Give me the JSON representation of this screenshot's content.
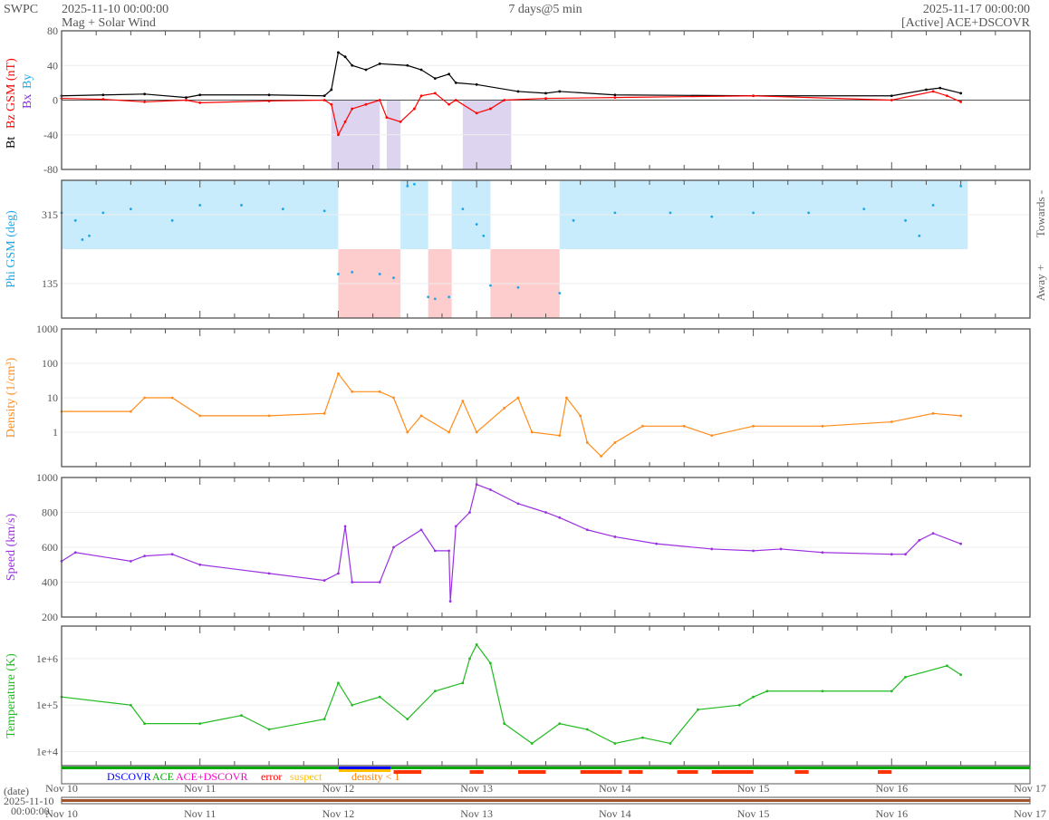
{
  "header": {
    "org": "SWPC",
    "start": "2025-11-10 00:00:00",
    "subtitle": "Mag + Solar Wind",
    "span": "7 days@5 min",
    "end": "2025-11-17 00:00:00",
    "source": "[Active] ACE+DSCOVR"
  },
  "colors": {
    "bt": "#000000",
    "bz": "#ff0000",
    "bx": "#8a2be2",
    "by": "#1ea7e8",
    "density": "#ff8c1a",
    "speed": "#9b30e0",
    "temperature": "#22bb22",
    "towards": "#c8ecfb",
    "away": "#fdcccc",
    "ace": "#00aa00",
    "dscovr": "#0000ff",
    "both": "#ff00cc",
    "error": "#ff0000",
    "suspect": "#ffbf00",
    "lowdensity": "#ff7f00",
    "datebar": "#a0522d"
  },
  "x_ticks": [
    "Nov 10",
    "Nov 11",
    "Nov 12",
    "Nov 13",
    "Nov 14",
    "Nov 15",
    "Nov 16",
    "Nov 17"
  ],
  "date_label": "(date)",
  "date_value": "2025-11-10",
  "time_value": "00:00:00",
  "legend": {
    "dscovr": "DSCOVR",
    "ace": "ACE",
    "both": "ACE+DSCOVR",
    "error": "error",
    "suspect": "suspect",
    "density": "density < 1"
  },
  "chart_data": [
    {
      "type": "line",
      "id": "mag",
      "ylabel_parts": {
        "bt": "Bt",
        "bz": "Bz GSM (nT)",
        "bx": "Bx",
        "by": "By"
      },
      "ylim": [
        -80,
        80
      ],
      "yticks": [
        "80",
        "40",
        "0",
        "-40",
        "-80"
      ],
      "ytick_values": [
        80,
        40,
        0,
        -40,
        -80
      ],
      "x_unit": "days since 2025-11-10 00:00",
      "series": [
        {
          "name": "Bt",
          "color": "#000000",
          "x": [
            0,
            0.3,
            0.6,
            0.9,
            1.0,
            1.5,
            1.9,
            1.95,
            2.0,
            2.05,
            2.1,
            2.2,
            2.3,
            2.5,
            2.6,
            2.7,
            2.8,
            2.85,
            3.0,
            3.3,
            3.5,
            3.6,
            4,
            5,
            6,
            6.25,
            6.35,
            6.5
          ],
          "y": [
            5,
            6,
            7,
            3,
            6,
            6,
            5,
            12,
            55,
            50,
            40,
            35,
            42,
            40,
            35,
            25,
            30,
            20,
            18,
            10,
            8,
            10,
            6,
            5,
            5,
            12,
            14,
            8
          ]
        },
        {
          "name": "Bz GSM",
          "color": "#ff0000",
          "x": [
            0,
            0.3,
            0.6,
            0.9,
            1.0,
            1.5,
            1.9,
            1.95,
            2.0,
            2.05,
            2.1,
            2.2,
            2.3,
            2.35,
            2.45,
            2.55,
            2.6,
            2.7,
            2.8,
            2.85,
            3.0,
            3.1,
            3.2,
            3.5,
            4,
            5,
            6,
            6.3,
            6.4,
            6.5
          ],
          "y": [
            2,
            1,
            -2,
            0,
            -3,
            -1,
            0,
            -5,
            -40,
            -25,
            -10,
            -5,
            0,
            -20,
            -25,
            -10,
            5,
            8,
            -5,
            0,
            -15,
            -10,
            0,
            2,
            3,
            5,
            0,
            10,
            5,
            -2
          ]
        }
      ]
    },
    {
      "type": "scatter",
      "id": "phi",
      "ylabel": "Phi GSM (deg)",
      "right_labels": [
        "Towards -",
        "Away +"
      ],
      "ylim": [
        45,
        405
      ],
      "yticks": [
        "315",
        "135"
      ],
      "ytick_values": [
        315,
        135
      ],
      "series": [
        {
          "name": "Phi GSM",
          "color": "#1ea7e8",
          "x": [
            0,
            0.1,
            0.15,
            0.2,
            0.3,
            0.5,
            0.8,
            1.0,
            1.3,
            1.6,
            1.9,
            2.0,
            2.1,
            2.3,
            2.4,
            2.5,
            2.55,
            2.65,
            2.7,
            2.8,
            2.9,
            3.0,
            3.05,
            3.1,
            3.3,
            3.6,
            3.7,
            4.0,
            4.4,
            4.7,
            5.0,
            5.4,
            5.8,
            6.1,
            6.2,
            6.3,
            6.5
          ],
          "y": [
            320,
            300,
            250,
            260,
            320,
            330,
            300,
            340,
            340,
            330,
            325,
            160,
            165,
            160,
            150,
            390,
            395,
            100,
            95,
            100,
            330,
            290,
            260,
            130,
            125,
            110,
            300,
            320,
            320,
            310,
            320,
            320,
            330,
            300,
            260,
            340,
            390
          ]
        }
      ]
    },
    {
      "type": "line",
      "id": "density",
      "ylabel": "Density (1/cm³)",
      "scale": "log",
      "ylim": [
        0.1,
        1000
      ],
      "yticks": [
        "1000",
        "100",
        "10",
        "1"
      ],
      "ytick_values": [
        1000,
        100,
        10,
        1
      ],
      "series": [
        {
          "name": "Density",
          "color": "#ff8c1a",
          "x": [
            0,
            0.5,
            0.6,
            0.8,
            1.0,
            1.5,
            1.9,
            2.0,
            2.1,
            2.3,
            2.4,
            2.5,
            2.6,
            2.8,
            2.9,
            3.0,
            3.2,
            3.3,
            3.4,
            3.6,
            3.65,
            3.75,
            3.8,
            3.9,
            4.0,
            4.2,
            4.5,
            4.7,
            5.0,
            5.5,
            6.0,
            6.3,
            6.5
          ],
          "y": [
            4,
            4,
            10,
            10,
            3,
            3,
            3.5,
            50,
            15,
            15,
            10,
            1,
            3,
            1,
            8,
            1,
            5,
            10,
            1,
            0.8,
            10,
            3,
            0.5,
            0.2,
            0.5,
            1.5,
            1.5,
            0.8,
            1.5,
            1.5,
            2,
            3.5,
            3
          ]
        }
      ]
    },
    {
      "type": "line",
      "id": "speed",
      "ylabel": "Speed (km/s)",
      "ylim": [
        200,
        1000
      ],
      "yticks": [
        "1000",
        "800",
        "600",
        "400",
        "200"
      ],
      "ytick_values": [
        1000,
        800,
        600,
        400,
        200
      ],
      "series": [
        {
          "name": "Speed",
          "color": "#9b30e0",
          "x": [
            0,
            0.1,
            0.5,
            0.6,
            0.8,
            1.0,
            1.5,
            1.9,
            2.0,
            2.05,
            2.1,
            2.3,
            2.4,
            2.6,
            2.7,
            2.8,
            2.81,
            2.85,
            2.95,
            3.0,
            3.1,
            3.3,
            3.5,
            3.6,
            3.8,
            4.0,
            4.3,
            4.7,
            5.0,
            5.2,
            5.5,
            6.0,
            6.1,
            6.2,
            6.3,
            6.5
          ],
          "y": [
            520,
            570,
            520,
            550,
            560,
            500,
            450,
            410,
            450,
            720,
            400,
            400,
            600,
            700,
            580,
            580,
            290,
            720,
            800,
            960,
            930,
            850,
            800,
            770,
            700,
            660,
            620,
            590,
            580,
            590,
            570,
            560,
            560,
            640,
            680,
            620
          ]
        }
      ]
    },
    {
      "type": "line",
      "id": "temperature",
      "ylabel": "Temperature (K)",
      "scale": "log",
      "ylim": [
        5000,
        5000000
      ],
      "yticks": [
        "1e+6",
        "1e+5",
        "1e+4"
      ],
      "ytick_values": [
        1000000,
        100000,
        10000
      ],
      "series": [
        {
          "name": "Temperature",
          "color": "#22bb22",
          "x": [
            0,
            0.5,
            0.6,
            1.0,
            1.3,
            1.5,
            1.9,
            2.0,
            2.1,
            2.3,
            2.5,
            2.7,
            2.9,
            2.95,
            3.0,
            3.1,
            3.2,
            3.4,
            3.6,
            3.8,
            4.0,
            4.2,
            4.4,
            4.6,
            4.9,
            5.0,
            5.1,
            5.5,
            6.0,
            6.1,
            6.4,
            6.5
          ],
          "y": [
            150000,
            100000,
            40000,
            40000,
            60000,
            30000,
            50000,
            300000,
            100000,
            150000,
            50000,
            200000,
            300000,
            1000000,
            2000000,
            800000,
            40000,
            15000,
            40000,
            30000,
            15000,
            20000,
            15000,
            80000,
            100000,
            150000,
            200000,
            200000,
            200000,
            400000,
            700000,
            450000
          ]
        }
      ]
    }
  ]
}
